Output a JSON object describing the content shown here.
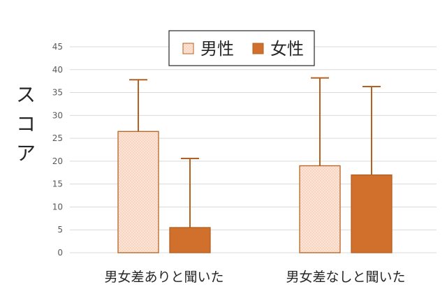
{
  "chart_data": {
    "type": "bar",
    "title": "",
    "xlabel": "",
    "ylabel": "スコア",
    "ylim": [
      0,
      45
    ],
    "yticks": [
      0,
      5,
      10,
      15,
      20,
      25,
      30,
      35,
      40,
      45
    ],
    "categories": [
      "男女差ありと聞いた",
      "男女差なしと聞いた"
    ],
    "series": [
      {
        "name": "男性",
        "values": [
          26.5,
          19.0
        ],
        "error_plus": [
          11.3,
          19.2
        ]
      },
      {
        "name": "女性",
        "values": [
          5.5,
          17.0
        ],
        "error_plus": [
          15.1,
          19.3
        ]
      }
    ],
    "grid": true,
    "legend": "top-center",
    "colors": {
      "male_fill": "#fbe4d5",
      "male_dots": "#f0b48f",
      "female_fill": "#d0702c",
      "bar_edge": "#b5601f",
      "error": "#b5601f",
      "grid": "#d9d9d9"
    }
  }
}
